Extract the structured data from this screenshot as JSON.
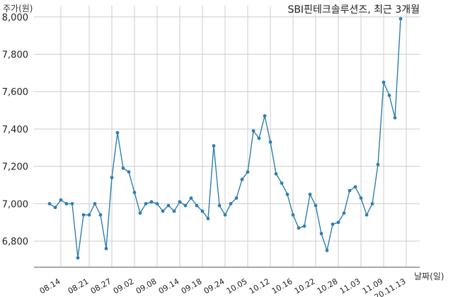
{
  "chart_data": {
    "type": "line",
    "title": "SBI핀테크솔루션즈, 최근 3개월",
    "ylabel": "주가(원)",
    "xlabel": "날짜(일)",
    "ylim": [
      6660,
      8060
    ],
    "yticks": [
      6800,
      7000,
      7200,
      7400,
      7600,
      7800,
      8000
    ],
    "ytick_labels": [
      "6,800",
      "7,000",
      "7,200",
      "7,400",
      "7,600",
      "7,800",
      "8,000"
    ],
    "xtick_labels": [
      "08.14",
      "08.21",
      "08.27",
      "09.02",
      "09.08",
      "09.14",
      "09.18",
      "09.24",
      "10.05",
      "10.12",
      "10.16",
      "10.22",
      "10.28",
      "11.03",
      "11.09",
      "20.11.13"
    ],
    "xtick_index": [
      2,
      7,
      11,
      15,
      19,
      23,
      27,
      31,
      35,
      39,
      43,
      47,
      51,
      55,
      59,
      63
    ],
    "grid": true,
    "line_color": "#2e7fb0",
    "series": [
      {
        "values": [
          7000,
          6980,
          7020,
          7000,
          7000,
          6710,
          6940,
          6940,
          7000,
          6940,
          6760,
          7140,
          7380,
          7190,
          7170,
          7060,
          6950,
          7000,
          7010,
          7000,
          6960,
          6990,
          6960,
          7010,
          6990,
          7030,
          6990,
          6960,
          6920,
          7310,
          6990,
          6940,
          7000,
          7030,
          7130,
          7170,
          7390,
          7350,
          7470,
          7330,
          7160,
          7110,
          7050,
          6940,
          6870,
          6880,
          7050,
          6990,
          6840,
          6750,
          6890,
          6900,
          6950,
          7070,
          7090,
          7030,
          6940,
          7000,
          7210,
          7650,
          7580,
          7460,
          7990
        ]
      }
    ]
  }
}
